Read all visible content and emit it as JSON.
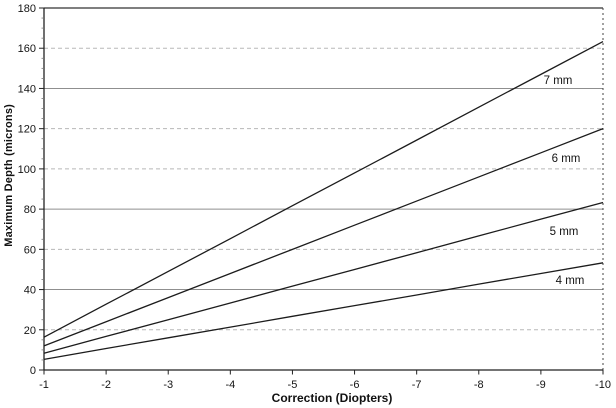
{
  "chart_data": {
    "type": "line",
    "title": "",
    "xlabel": "Correction (Diopters)",
    "ylabel": "Maximum Depth (microns)",
    "x": [
      -1,
      -2,
      -3,
      -4,
      -5,
      -6,
      -7,
      -8,
      -9,
      -10
    ],
    "xlim": [
      -1,
      -10
    ],
    "ylim": [
      0,
      180
    ],
    "yticks": [
      0,
      20,
      40,
      60,
      80,
      100,
      120,
      140,
      160,
      180
    ],
    "grid": "horizontal-only",
    "legend_position": "inline-labels-right",
    "series": [
      {
        "name": "7 mm",
        "values": [
          16.3,
          32.7,
          49.0,
          65.3,
          81.7,
          98.0,
          114.3,
          130.7,
          147.0,
          163.3
        ]
      },
      {
        "name": "6 mm",
        "values": [
          12.0,
          24.0,
          36.0,
          48.0,
          60.0,
          72.0,
          84.0,
          96.0,
          108.0,
          120.0
        ]
      },
      {
        "name": "5 mm",
        "values": [
          8.3,
          16.7,
          25.0,
          33.3,
          41.7,
          50.0,
          58.3,
          66.7,
          75.0,
          83.3
        ]
      },
      {
        "name": "4 mm",
        "values": [
          5.3,
          10.7,
          16.0,
          21.3,
          26.7,
          32.0,
          37.3,
          42.7,
          48.0,
          53.3
        ]
      }
    ]
  },
  "colors": {
    "background": "#ffffff",
    "line": "#1c1c1c",
    "axis": "#222222",
    "grid_solid": "#8f8f8f",
    "grid_dashed": "#b8b8b8",
    "right_border": "#444444",
    "text": "#141414"
  }
}
